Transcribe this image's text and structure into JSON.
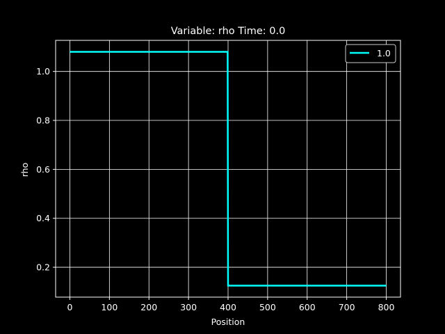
{
  "chart_data": {
    "type": "line",
    "title": "Variable: rho Time: 0.0",
    "xlabel": "Position",
    "ylabel": "rho",
    "xlim": [
      -36,
      836
    ],
    "ylim": [
      0.078,
      1.127
    ],
    "xticks": [
      0,
      100,
      200,
      300,
      400,
      500,
      600,
      700,
      800
    ],
    "yticks": [
      0.2,
      0.4,
      0.6,
      0.8,
      1.0
    ],
    "ytick_labels": [
      "0.2",
      "0.4",
      "0.6",
      "0.8",
      "1.0"
    ],
    "grid": true,
    "legend_position": "top-right",
    "background": "#000000",
    "foreground": "#ffffff",
    "series": [
      {
        "name": "1.0",
        "color": "#00ffff",
        "x": [
          0,
          399,
          400,
          800
        ],
        "y": [
          1.08,
          1.08,
          0.125,
          0.125
        ]
      }
    ]
  }
}
